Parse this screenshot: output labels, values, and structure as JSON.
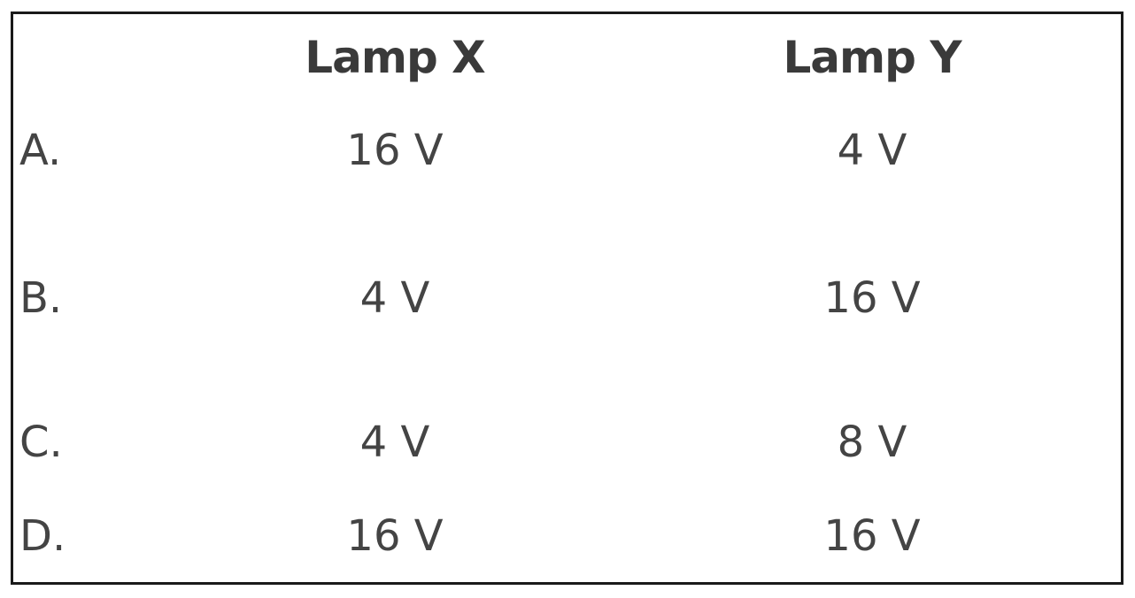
{
  "table": {
    "headers": {
      "col1": "Lamp X",
      "col2": "Lamp Y"
    },
    "rows": [
      {
        "option": "A.",
        "lamp_x": "16 V",
        "lamp_y": "4 V"
      },
      {
        "option": "B.",
        "lamp_x": "4 V",
        "lamp_y": "16 V"
      },
      {
        "option": "C.",
        "lamp_x": "4 V",
        "lamp_y": "8 V"
      },
      {
        "option": "D.",
        "lamp_x": "16 V",
        "lamp_y": "16 V"
      }
    ]
  }
}
